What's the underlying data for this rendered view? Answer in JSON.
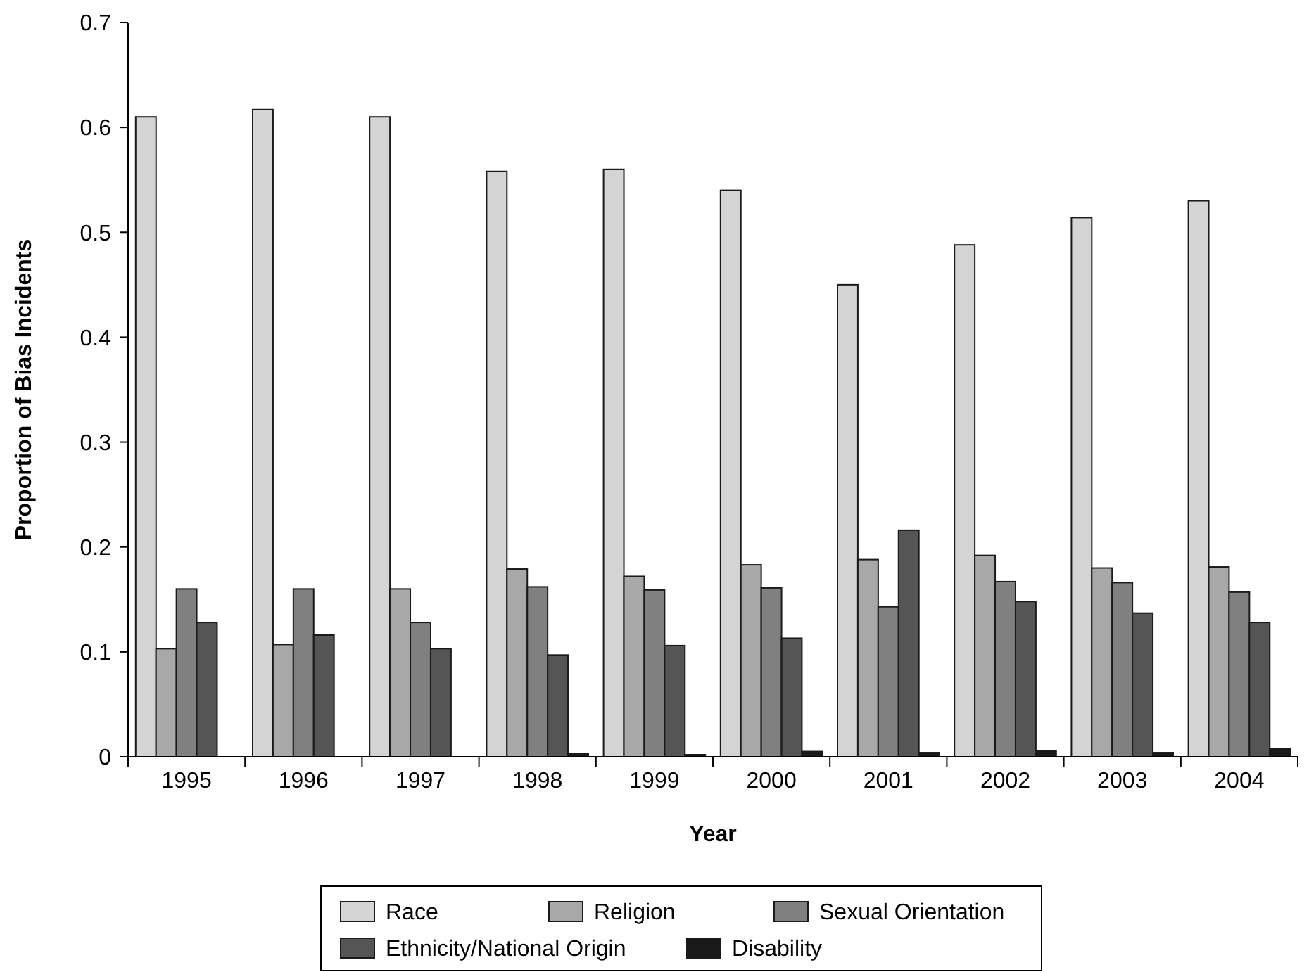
{
  "chart_data": {
    "type": "bar",
    "xlabel": "Year",
    "ylabel": "Proportion of Bias Incidents",
    "categories": [
      "1995",
      "1996",
      "1997",
      "1998",
      "1999",
      "2000",
      "2001",
      "2002",
      "2003",
      "2004"
    ],
    "series": [
      {
        "name": "Race",
        "color": "#d4d4d4",
        "values": [
          0.61,
          0.617,
          0.61,
          0.558,
          0.56,
          0.54,
          0.45,
          0.488,
          0.514,
          0.53
        ]
      },
      {
        "name": "Religion",
        "color": "#a8a8a8",
        "values": [
          0.103,
          0.107,
          0.16,
          0.179,
          0.172,
          0.183,
          0.188,
          0.192,
          0.18,
          0.181
        ]
      },
      {
        "name": "Sexual Orientation",
        "color": "#808080",
        "values": [
          0.16,
          0.16,
          0.128,
          0.162,
          0.159,
          0.161,
          0.143,
          0.167,
          0.166,
          0.157
        ]
      },
      {
        "name": "Ethnicity/National Origin",
        "color": "#555555",
        "values": [
          0.128,
          0.116,
          0.103,
          0.097,
          0.106,
          0.113,
          0.216,
          0.148,
          0.137,
          0.128
        ]
      },
      {
        "name": "Disability",
        "color": "#1a1a1a",
        "values": [
          0,
          0,
          0,
          0.003,
          0.002,
          0.005,
          0.004,
          0.006,
          0.004,
          0.008
        ]
      }
    ],
    "ylim": [
      0,
      0.7
    ],
    "yticks": [
      0,
      0.1,
      0.2,
      0.3,
      0.4,
      0.5,
      0.6,
      0.7
    ],
    "grid": false,
    "legend": "bottom"
  }
}
